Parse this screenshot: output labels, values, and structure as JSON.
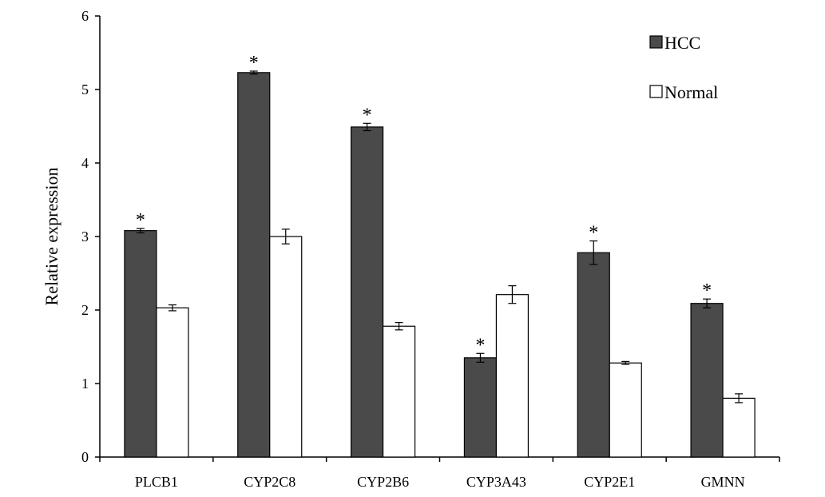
{
  "chart_data": {
    "type": "bar",
    "title": "",
    "xlabel": "",
    "ylabel": "Relative expression",
    "ylim": [
      0,
      6
    ],
    "yticks": [
      0,
      1,
      2,
      3,
      4,
      5,
      6
    ],
    "grid": false,
    "legend_position": "top-right",
    "categories": [
      "PLCB1",
      "CYP2C8",
      "CYP2B6",
      "CYP3A43",
      "CYP2E1",
      "GMNN"
    ],
    "series": [
      {
        "name": "HCC",
        "color": "#4a4a4a",
        "values": [
          3.08,
          5.23,
          4.49,
          1.35,
          2.78,
          2.09
        ],
        "errors": [
          0.03,
          0.02,
          0.05,
          0.06,
          0.16,
          0.06
        ],
        "significance": [
          "*",
          "*",
          "*",
          "*",
          "*",
          "*"
        ]
      },
      {
        "name": "Normal",
        "color": "#ffffff",
        "values": [
          2.03,
          3.0,
          1.78,
          2.21,
          1.28,
          0.8
        ],
        "errors": [
          0.04,
          0.1,
          0.05,
          0.12,
          0.02,
          0.06
        ],
        "significance": [
          "",
          "",
          "",
          "",
          "",
          ""
        ]
      }
    ]
  }
}
